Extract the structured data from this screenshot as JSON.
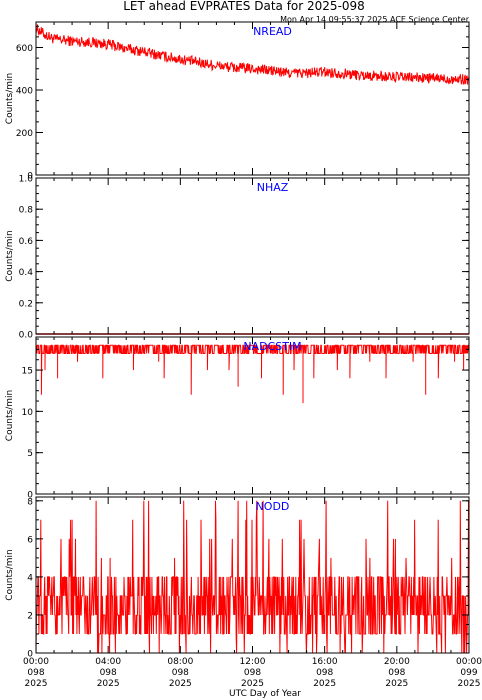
{
  "header": {
    "title": "LET ahead EVPRATES Data for 2025-098",
    "timestamp": "Mon Apr 14 09:55:37 2025 ACE Science Center"
  },
  "colors": {
    "data": "#ff0000",
    "panel_label": "#0000ff",
    "axis": "#000000"
  },
  "x_axis": {
    "label": "UTC Day of Year",
    "ticks": [
      {
        "time": "00:00",
        "doy": "098",
        "year": "2025"
      },
      {
        "time": "04:00",
        "doy": "098",
        "year": "2025"
      },
      {
        "time": "08:00",
        "doy": "098",
        "year": "2025"
      },
      {
        "time": "12:00",
        "doy": "098",
        "year": "2025"
      },
      {
        "time": "16:00",
        "doy": "098",
        "year": "2025"
      },
      {
        "time": "20:00",
        "doy": "098",
        "year": "2025"
      },
      {
        "time": "00:00",
        "doy": "099",
        "year": "2025"
      }
    ]
  },
  "chart_data": [
    {
      "type": "line",
      "panel": "NREAD",
      "ylabel": "Counts/min",
      "ylim": [
        0,
        720
      ],
      "yticks": [
        0,
        200,
        400,
        600
      ],
      "xlim_hours": [
        0,
        24
      ],
      "x_hours": [
        0,
        0.5,
        1,
        2,
        3,
        4,
        5,
        6,
        7,
        8,
        9,
        10,
        11,
        12,
        13,
        14,
        15,
        16,
        17,
        18,
        19,
        20,
        21,
        22,
        23,
        24
      ],
      "y": [
        690,
        660,
        640,
        630,
        625,
        615,
        595,
        580,
        560,
        545,
        530,
        515,
        505,
        500,
        492,
        480,
        480,
        485,
        478,
        470,
        465,
        460,
        458,
        455,
        452,
        450
      ],
      "noise_amplitude": 25
    },
    {
      "type": "line",
      "panel": "NHAZ",
      "ylabel": "Counts/min",
      "ylim": [
        0,
        1
      ],
      "yticks": [
        0.0,
        0.2,
        0.4,
        0.6,
        0.8,
        1.0
      ],
      "xlim_hours": [
        0,
        24
      ],
      "constant_value": 0
    },
    {
      "type": "line",
      "panel": "NADCSTIM",
      "ylabel": "Counts/min",
      "ylim": [
        0,
        19
      ],
      "yticks": [
        0,
        5,
        10,
        15
      ],
      "xlim_hours": [
        0,
        24
      ],
      "baseline_range": [
        17,
        18
      ],
      "dips": [
        {
          "x_hours": 0.3,
          "y": 12
        },
        {
          "x_hours": 0.5,
          "y": 15
        },
        {
          "x_hours": 1.2,
          "y": 14
        },
        {
          "x_hours": 2.3,
          "y": 16
        },
        {
          "x_hours": 3.7,
          "y": 14
        },
        {
          "x_hours": 5.4,
          "y": 15
        },
        {
          "x_hours": 6.8,
          "y": 16
        },
        {
          "x_hours": 7.1,
          "y": 14
        },
        {
          "x_hours": 8.6,
          "y": 12
        },
        {
          "x_hours": 9.5,
          "y": 15
        },
        {
          "x_hours": 10.7,
          "y": 15
        },
        {
          "x_hours": 11.2,
          "y": 13
        },
        {
          "x_hours": 12.5,
          "y": 14
        },
        {
          "x_hours": 13.7,
          "y": 12
        },
        {
          "x_hours": 14.3,
          "y": 15
        },
        {
          "x_hours": 14.8,
          "y": 11
        },
        {
          "x_hours": 15.4,
          "y": 14
        },
        {
          "x_hours": 16.7,
          "y": 15
        },
        {
          "x_hours": 17.4,
          "y": 14
        },
        {
          "x_hours": 18.5,
          "y": 16
        },
        {
          "x_hours": 19.4,
          "y": 14
        },
        {
          "x_hours": 20.9,
          "y": 16
        },
        {
          "x_hours": 21.6,
          "y": 12
        },
        {
          "x_hours": 22.3,
          "y": 14
        },
        {
          "x_hours": 23.2,
          "y": 16
        },
        {
          "x_hours": 23.7,
          "y": 15
        }
      ]
    },
    {
      "type": "line",
      "panel": "NODD",
      "ylabel": "Counts/min",
      "ylim": [
        0,
        8.2
      ],
      "yticks": [
        0,
        2,
        4,
        6,
        8
      ],
      "xlim_hours": [
        0,
        24
      ],
      "value_range": [
        0,
        8
      ],
      "typical_range": [
        1,
        4
      ]
    }
  ]
}
